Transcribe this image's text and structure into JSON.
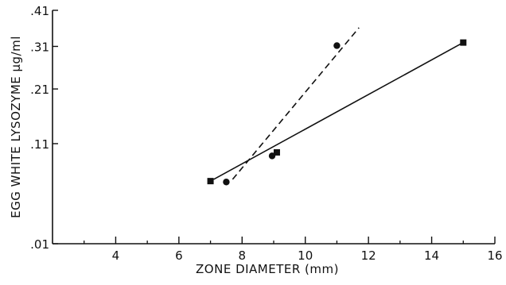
{
  "chart_data": {
    "type": "scatter",
    "xlabel": "ZONE DIAMETER  (mm)",
    "ylabel": "EGG WHITE LYSOZYME  μg/ml",
    "x_ticks": [
      4,
      6,
      8,
      10,
      12,
      14,
      16
    ],
    "y_ticks": [
      {
        "label": ".01",
        "value": 0.01
      },
      {
        "label": ".11",
        "value": 0.11
      },
      {
        "label": ".21",
        "value": 0.21
      },
      {
        "label": ".31",
        "value": 0.31
      },
      {
        "label": ".41",
        "value": 0.41
      }
    ],
    "xlim": [
      2,
      16
    ],
    "ylim": [
      0.01,
      0.41
    ],
    "y_scale": "sqrt",
    "grid": false,
    "series": [
      {
        "marker": "square",
        "line_style": "solid",
        "points": [
          {
            "x": 7.0,
            "y": 0.06
          },
          {
            "x": 9.1,
            "y": 0.097
          },
          {
            "x": 15.0,
            "y": 0.32
          }
        ],
        "fit_line": {
          "x": [
            7.1,
            15.0
          ],
          "y": [
            0.062,
            0.32
          ]
        }
      },
      {
        "marker": "circle",
        "line_style": "dashed",
        "points": [
          {
            "x": 7.5,
            "y": 0.059
          },
          {
            "x": 8.95,
            "y": 0.092
          },
          {
            "x": 11.0,
            "y": 0.312
          }
        ],
        "fit_line": {
          "x": [
            7.7,
            11.7
          ],
          "y": [
            0.062,
            0.36
          ]
        }
      }
    ]
  }
}
